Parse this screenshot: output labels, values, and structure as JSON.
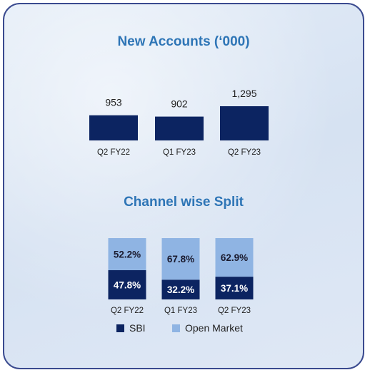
{
  "colors": {
    "sbi": "#0c2461",
    "open_market": "#8fb4e3",
    "title": "#2e75b6"
  },
  "chart_data": [
    {
      "type": "bar",
      "title": "New Accounts (‘000)",
      "categories": [
        "Q2 FY22",
        "Q1 FY23",
        "Q2 FY23"
      ],
      "values": [
        953,
        902,
        1295
      ],
      "value_labels": [
        "953",
        "902",
        "1,295"
      ]
    },
    {
      "type": "bar",
      "stacked": true,
      "title": "Channel wise Split",
      "categories": [
        "Q2 FY22",
        "Q1 FY23",
        "Q2 FY23"
      ],
      "series": [
        {
          "name": "SBI",
          "values": [
            47.8,
            32.2,
            37.1
          ],
          "labels": [
            "47.8%",
            "32.2%",
            "37.1%"
          ]
        },
        {
          "name": "Open Market",
          "values": [
            52.2,
            67.8,
            62.9
          ],
          "labels": [
            "52.2%",
            "67.8%",
            "62.9%"
          ]
        }
      ],
      "ylim": [
        0,
        100
      ],
      "legend": "bottom"
    }
  ]
}
